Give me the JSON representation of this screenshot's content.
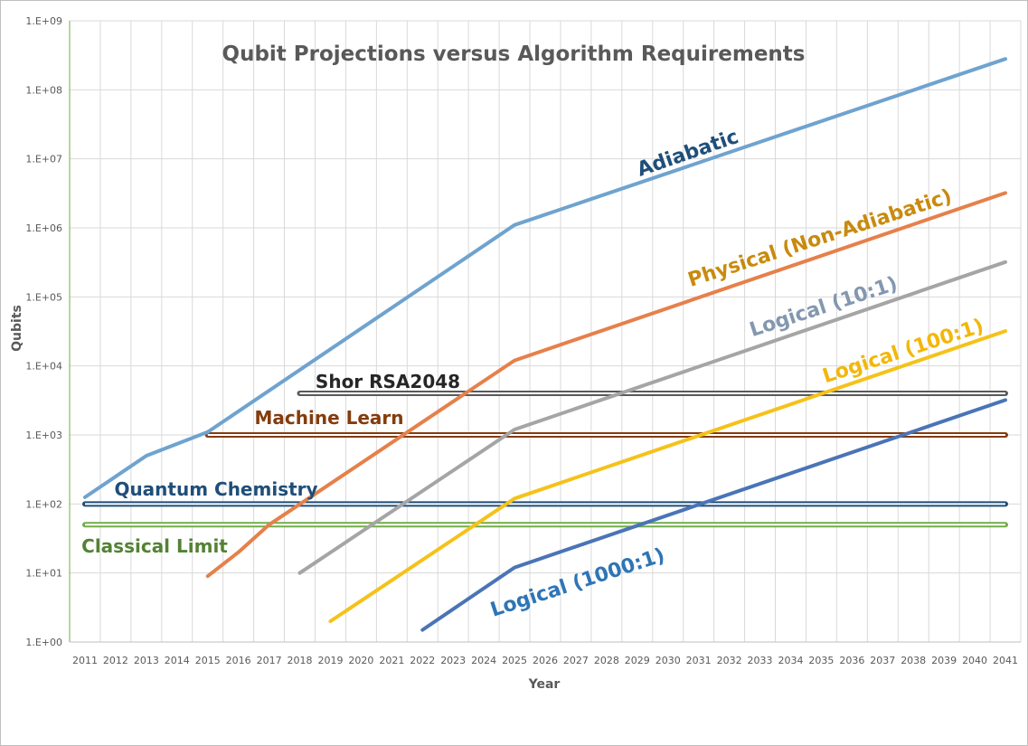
{
  "chart_data": {
    "type": "line",
    "title": "Qubit Projections versus Algorithm Requirements",
    "xlabel": "Year",
    "ylabel": "Qubits",
    "y_scale": "log",
    "ylim": [
      1,
      1000000000
    ],
    "xlim": [
      2011,
      2041
    ],
    "grid": true,
    "legend": "none",
    "x_ticks": [
      "2011",
      "2012",
      "2013",
      "2014",
      "2015",
      "2016",
      "2017",
      "2018",
      "2019",
      "2020",
      "2021",
      "2022",
      "2023",
      "2024",
      "2025",
      "2026",
      "2027",
      "2028",
      "2029",
      "2030",
      "2031",
      "2032",
      "2033",
      "2034",
      "2035",
      "2036",
      "2037",
      "2038",
      "2039",
      "2040",
      "2041"
    ],
    "y_ticks": [
      "1.E+00",
      "1.E+01",
      "1.E+02",
      "1.E+03",
      "1.E+04",
      "1.E+05",
      "1.E+06",
      "1.E+07",
      "1.E+08",
      "1.E+09"
    ],
    "series": [
      {
        "name": "Adiabatic",
        "color": "#6fa3cf",
        "label_color": "#1f4e79",
        "points": [
          [
            2011,
            125
          ],
          [
            2013,
            500
          ],
          [
            2015,
            1100
          ],
          [
            2025,
            1100000
          ],
          [
            2041,
            280000000
          ]
        ]
      },
      {
        "name": "Physical (Non-Adiabatic)",
        "color": "#e6804a",
        "label_color": "#c98a0e",
        "points": [
          [
            2015,
            9
          ],
          [
            2016,
            20
          ],
          [
            2017,
            50
          ],
          [
            2025,
            12000
          ],
          [
            2041,
            3200000
          ]
        ]
      },
      {
        "name": "Logical (10:1)",
        "color": "#a5a5a5",
        "label_color": "#8497b0",
        "points": [
          [
            2018,
            10
          ],
          [
            2025,
            1200
          ],
          [
            2041,
            320000
          ]
        ]
      },
      {
        "name": "Logical (100:1)",
        "color": "#f5c21a",
        "label_color": "#f2b70a",
        "points": [
          [
            2019,
            2
          ],
          [
            2025,
            120
          ],
          [
            2041,
            32000
          ]
        ]
      },
      {
        "name": "Logical (1000:1)",
        "color": "#4a74b6",
        "label_color": "#2e75b6",
        "points": [
          [
            2022,
            1.5
          ],
          [
            2025,
            12
          ],
          [
            2041,
            3200
          ]
        ]
      }
    ],
    "reference_lines": [
      {
        "name": "Shor RSA2048",
        "value": 4000,
        "x_start": 2018,
        "x_end": 2041,
        "color": "#595959",
        "label_color": "#262626"
      },
      {
        "name": "Machine Learn",
        "value": 1000,
        "x_start": 2015,
        "x_end": 2041,
        "color": "#843c0c",
        "label_color": "#843c0c"
      },
      {
        "name": "Quantum Chemistry",
        "value": 100,
        "x_start": 2011,
        "x_end": 2041,
        "color": "#1f4e79",
        "label_color": "#1f4e79"
      },
      {
        "name": "Classical Limit",
        "value": 50,
        "x_start": 2011,
        "x_end": 2041,
        "color": "#70ad47",
        "label_color": "#548235"
      }
    ]
  }
}
